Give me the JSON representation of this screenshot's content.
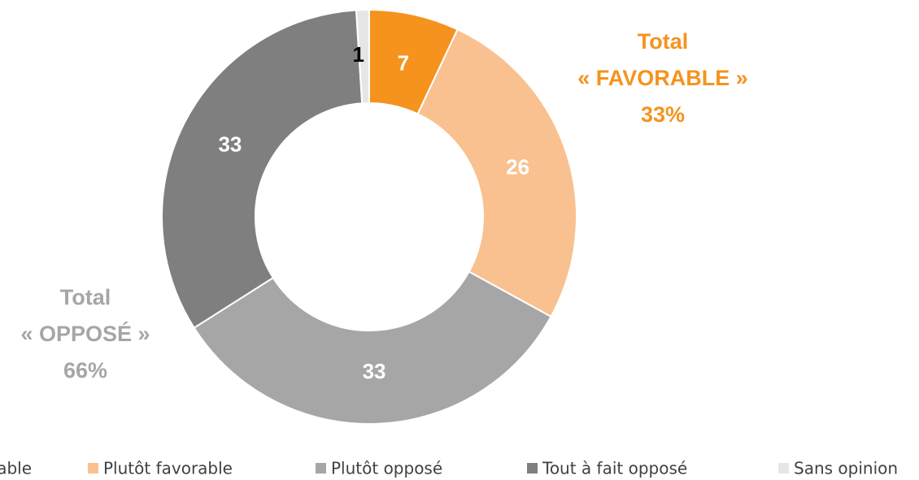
{
  "chart_data": {
    "type": "donut",
    "categories": [
      "Tout à fait favorable",
      "Plutôt favorable",
      "Plutôt opposé",
      "Tout à fait opposé",
      "Sans opinion"
    ],
    "values": [
      7,
      26,
      33,
      33,
      1
    ],
    "colors": [
      "#f5931e",
      "#f9c190",
      "#a6a6a6",
      "#7f7f7f",
      "#e7e6e6"
    ],
    "label_colors": [
      "#ffffff",
      "#ffffff",
      "#ffffff",
      "#ffffff",
      "#000000"
    ],
    "annotations": [
      {
        "lines": [
          "Total",
          "« FAVORABLE »",
          "33%"
        ],
        "color": "#f5931e"
      },
      {
        "lines": [
          "Total",
          "« OPPOSÉ »",
          "66%"
        ],
        "color": "#a6a6a6"
      }
    ],
    "legend": "bottom"
  }
}
